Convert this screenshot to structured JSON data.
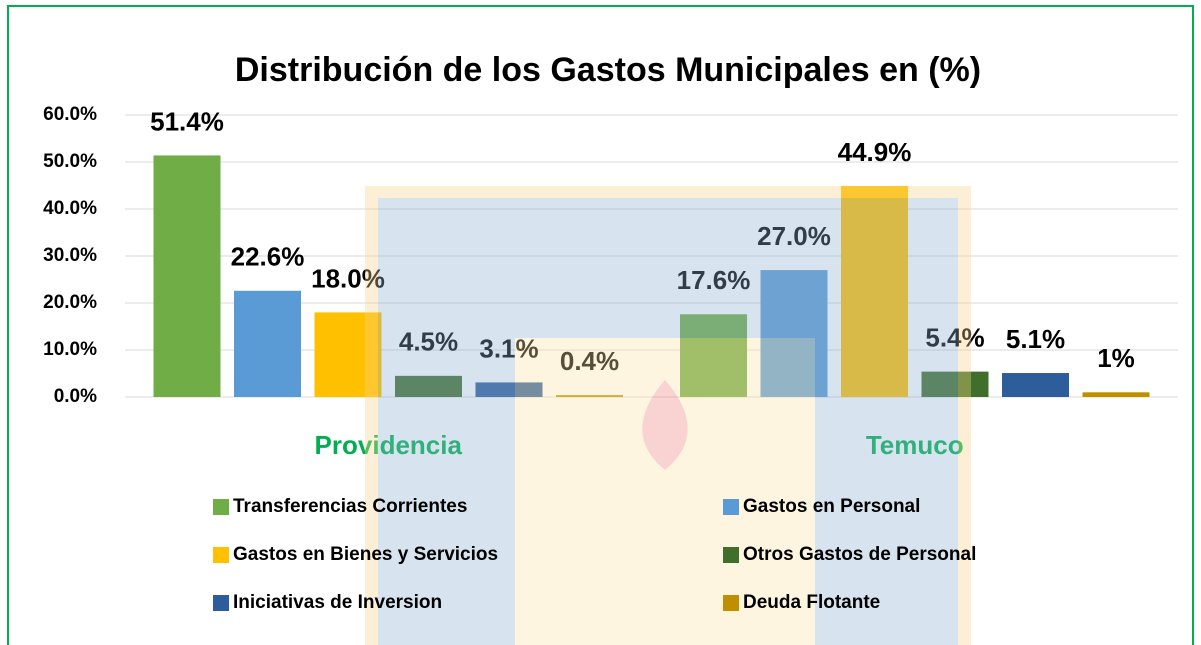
{
  "chart_data": {
    "type": "bar",
    "title": "Distribución de los Gastos Municipales en (%)",
    "categories": [
      "Providencia",
      "Temuco"
    ],
    "series": [
      {
        "name": "Transferencias Corrientes",
        "color": "#70ad47",
        "values": [
          51.4,
          17.6
        ],
        "value_labels": [
          "51.4%",
          "17.6%"
        ]
      },
      {
        "name": "Gastos en Personal",
        "color": "#5b9bd5",
        "values": [
          22.6,
          27.0
        ],
        "value_labels": [
          "22.6%",
          "27.0%"
        ]
      },
      {
        "name": "Gastos en Bienes y Servicios",
        "color": "#ffc000",
        "values": [
          18.0,
          44.9
        ],
        "value_labels": [
          "18.0%",
          "44.9%"
        ]
      },
      {
        "name": "Otros Gastos de Personal",
        "color": "#3f6f2a",
        "values": [
          4.5,
          5.4
        ],
        "value_labels": [
          "4.5%",
          "5.4%"
        ]
      },
      {
        "name": "Iniciativas de Inversion",
        "color": "#2e5d9b",
        "values": [
          3.1,
          5.1
        ],
        "value_labels": [
          "3.1%",
          "5.1%"
        ]
      },
      {
        "name": "Deuda Flotante",
        "color": "#bf8f00",
        "values": [
          0.4,
          1
        ],
        "value_labels": [
          "0.4%",
          "1%"
        ]
      }
    ],
    "ylim": [
      0,
      60
    ],
    "yticks": [
      {
        "value": 0,
        "label": "0.0%"
      },
      {
        "value": 10,
        "label": "10.0%"
      },
      {
        "value": 20,
        "label": "20.0%"
      },
      {
        "value": 30,
        "label": "30.0%"
      },
      {
        "value": 40,
        "label": "40.0%"
      },
      {
        "value": 50,
        "label": "50.0%"
      },
      {
        "value": 60,
        "label": "60.0%"
      }
    ],
    "grid": true,
    "legend": "bottom"
  }
}
